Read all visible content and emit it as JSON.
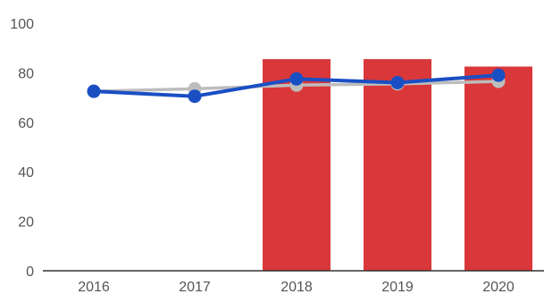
{
  "chart_data": {
    "type": "bar",
    "title": "",
    "xlabel": "",
    "ylabel": "",
    "categories": [
      "2016",
      "2017",
      "2018",
      "2019",
      "2020"
    ],
    "ylim": [
      0,
      100
    ],
    "yticks": [
      0,
      20,
      40,
      60,
      80,
      100
    ],
    "grid": false,
    "legend": "none",
    "bars": {
      "color": "#d9373a",
      "values": [
        null,
        null,
        85.5,
        85.5,
        82.5
      ]
    },
    "lines": [
      {
        "color": "#bdbdbd",
        "values": [
          72.5,
          73.5,
          75,
          75.5,
          76.5
        ]
      },
      {
        "color": "#1a4fc4",
        "values": [
          72.5,
          70.5,
          77.5,
          76,
          79
        ]
      }
    ]
  }
}
